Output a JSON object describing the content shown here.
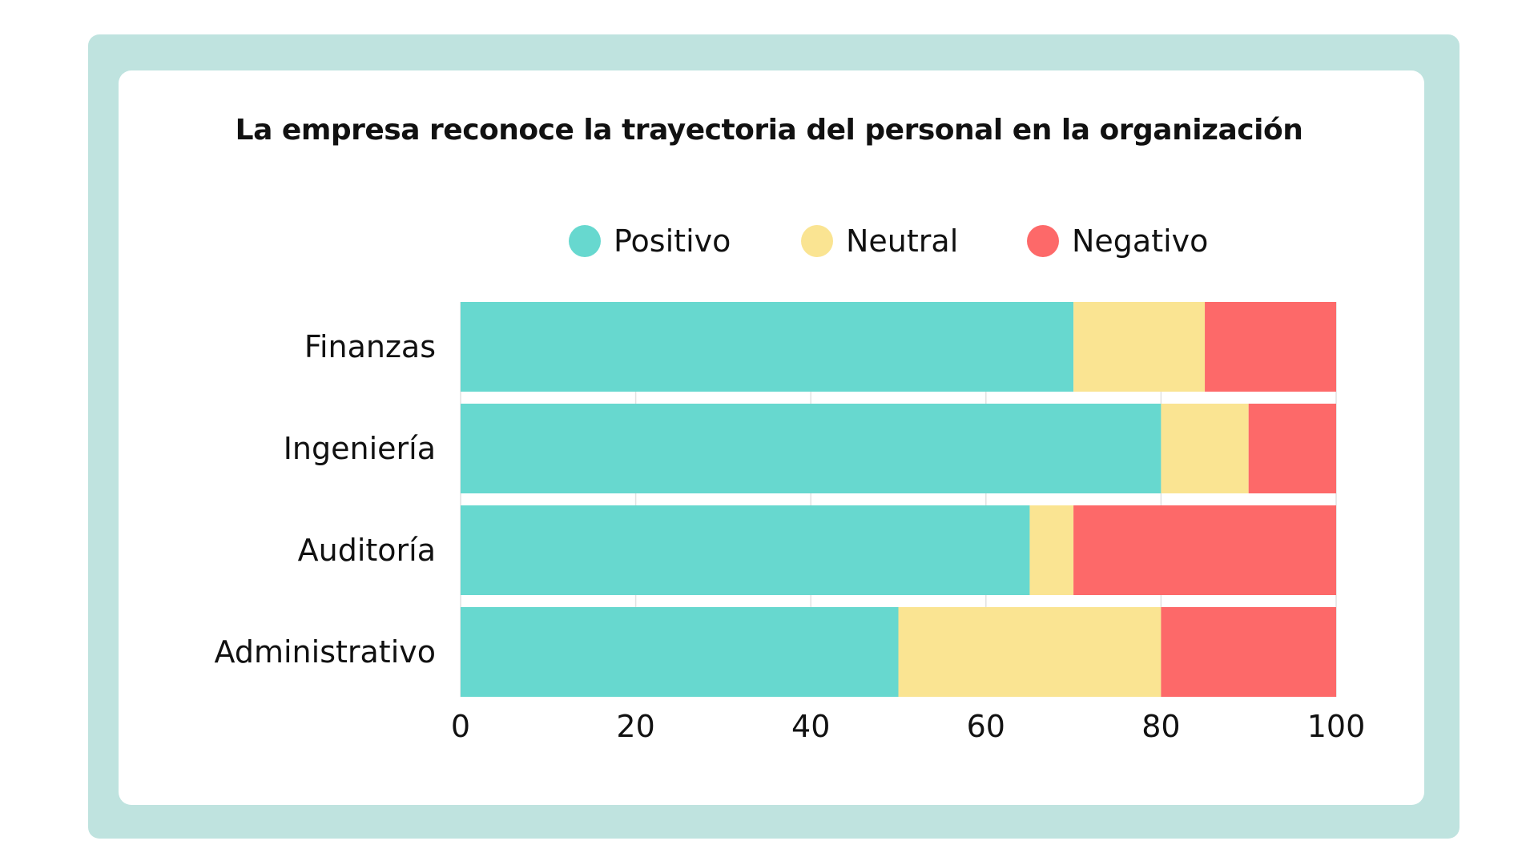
{
  "chart_data": {
    "type": "bar",
    "orientation": "horizontal",
    "stacked": true,
    "title": "La empresa reconoce la trayectoria del personal en la organización",
    "categories": [
      "Finanzas",
      "Ingeniería",
      "Auditoría",
      "Administrativo"
    ],
    "series": [
      {
        "name": "Positivo",
        "color": "#67d8cf",
        "values": [
          70,
          80,
          65,
          50
        ]
      },
      {
        "name": "Neutral",
        "color": "#fae492",
        "values": [
          15,
          10,
          5,
          30
        ]
      },
      {
        "name": "Negativo",
        "color": "#fd6969",
        "values": [
          15,
          10,
          30,
          20
        ]
      }
    ],
    "xlim": [
      0,
      100
    ],
    "xticks": [
      "0",
      "20",
      "40",
      "60",
      "80",
      "100"
    ],
    "grid": true,
    "legend": "top"
  }
}
